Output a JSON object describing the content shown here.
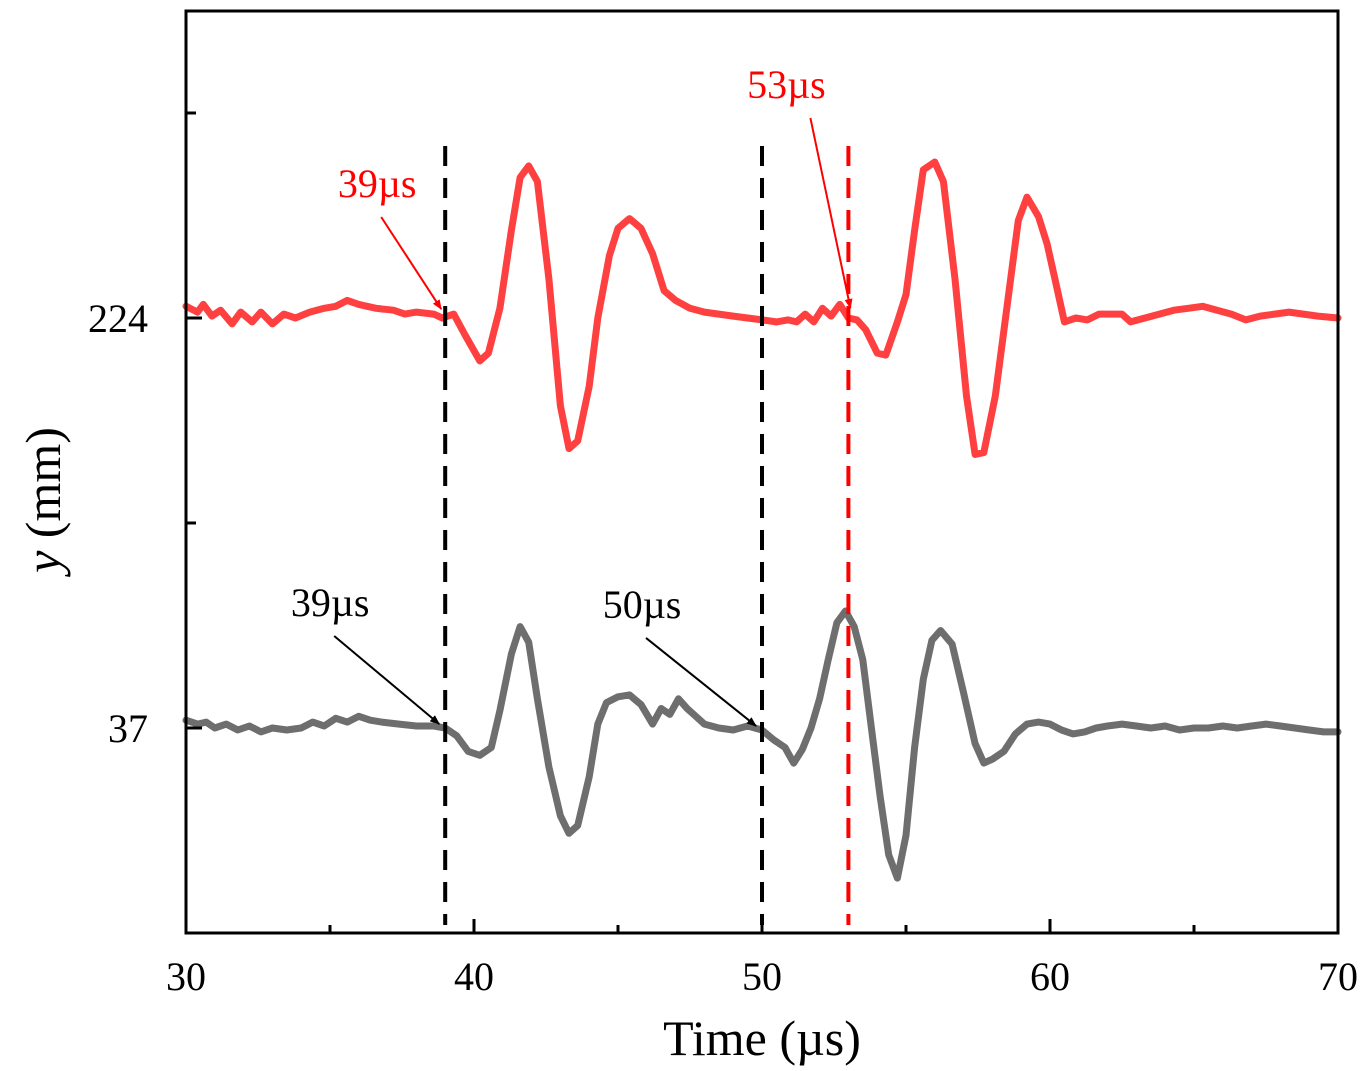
{
  "chart_data": {
    "type": "line",
    "title": "",
    "xlabel": "Time (µs)",
    "ylabel_italic": "y",
    "ylabel_unit": " (mm)",
    "xlim": [
      30,
      70
    ],
    "x_ticks": [
      30,
      40,
      50,
      60,
      70
    ],
    "x_minor_ticks": [
      35,
      45,
      55,
      65
    ],
    "y_tick_labels": [
      "224",
      "37"
    ],
    "colors": {
      "upper": "#ff4040",
      "lower": "#6e6e6e",
      "red_marker": "#ff0000",
      "black": "#000000"
    },
    "series": [
      {
        "name": "y = 224 mm",
        "offset_label": "224",
        "color": "#ff4040",
        "points": [
          [
            30.0,
            0.6
          ],
          [
            30.4,
            0.3
          ],
          [
            30.6,
            0.7
          ],
          [
            30.9,
            0.1
          ],
          [
            31.2,
            0.4
          ],
          [
            31.6,
            -0.3
          ],
          [
            31.9,
            0.3
          ],
          [
            32.3,
            -0.2
          ],
          [
            32.6,
            0.3
          ],
          [
            33.0,
            -0.3
          ],
          [
            33.4,
            0.2
          ],
          [
            33.8,
            0.0
          ],
          [
            34.3,
            0.3
          ],
          [
            34.8,
            0.5
          ],
          [
            35.2,
            0.6
          ],
          [
            35.6,
            0.9
          ],
          [
            36.0,
            0.7
          ],
          [
            36.6,
            0.5
          ],
          [
            37.2,
            0.4
          ],
          [
            37.6,
            0.2
          ],
          [
            38.0,
            0.3
          ],
          [
            38.6,
            0.2
          ],
          [
            38.9,
            0.0
          ],
          [
            39.3,
            0.2
          ],
          [
            39.7,
            -0.9
          ],
          [
            40.2,
            -2.2
          ],
          [
            40.5,
            -1.8
          ],
          [
            40.9,
            0.5
          ],
          [
            41.3,
            4.5
          ],
          [
            41.6,
            7.2
          ],
          [
            41.9,
            7.8
          ],
          [
            42.2,
            7.0
          ],
          [
            42.6,
            2.0
          ],
          [
            43.0,
            -4.5
          ],
          [
            43.3,
            -6.7
          ],
          [
            43.6,
            -6.3
          ],
          [
            44.0,
            -3.5
          ],
          [
            44.3,
            0.0
          ],
          [
            44.7,
            3.2
          ],
          [
            45.0,
            4.6
          ],
          [
            45.4,
            5.1
          ],
          [
            45.8,
            4.6
          ],
          [
            46.2,
            3.3
          ],
          [
            46.6,
            1.4
          ],
          [
            47.0,
            0.9
          ],
          [
            47.5,
            0.5
          ],
          [
            48.0,
            0.3
          ],
          [
            48.5,
            0.2
          ],
          [
            49.0,
            0.1
          ],
          [
            49.5,
            0.0
          ],
          [
            50.0,
            -0.1
          ],
          [
            50.5,
            -0.2
          ],
          [
            50.9,
            -0.1
          ],
          [
            51.2,
            -0.2
          ],
          [
            51.5,
            0.2
          ],
          [
            51.8,
            -0.2
          ],
          [
            52.1,
            0.5
          ],
          [
            52.4,
            0.1
          ],
          [
            52.7,
            0.7
          ],
          [
            53.0,
            0.0
          ],
          [
            53.3,
            -0.1
          ],
          [
            53.6,
            -0.6
          ],
          [
            54.0,
            -1.8
          ],
          [
            54.3,
            -1.9
          ],
          [
            54.7,
            -0.2
          ],
          [
            55.0,
            1.2
          ],
          [
            55.3,
            4.5
          ],
          [
            55.6,
            7.6
          ],
          [
            56.0,
            8.0
          ],
          [
            56.3,
            7.0
          ],
          [
            56.7,
            2.0
          ],
          [
            57.1,
            -4.0
          ],
          [
            57.4,
            -7.0
          ],
          [
            57.7,
            -6.9
          ],
          [
            58.1,
            -4.0
          ],
          [
            58.5,
            0.5
          ],
          [
            58.9,
            5.0
          ],
          [
            59.2,
            6.2
          ],
          [
            59.6,
            5.2
          ],
          [
            59.9,
            3.8
          ],
          [
            60.2,
            1.8
          ],
          [
            60.5,
            -0.2
          ],
          [
            60.9,
            0.0
          ],
          [
            61.3,
            -0.1
          ],
          [
            61.7,
            0.2
          ],
          [
            62.1,
            0.2
          ],
          [
            62.5,
            0.2
          ],
          [
            62.8,
            -0.2
          ],
          [
            63.3,
            0.0
          ],
          [
            63.8,
            0.2
          ],
          [
            64.3,
            0.4
          ],
          [
            64.8,
            0.5
          ],
          [
            65.3,
            0.6
          ],
          [
            65.8,
            0.4
          ],
          [
            66.3,
            0.2
          ],
          [
            66.8,
            -0.1
          ],
          [
            67.3,
            0.1
          ],
          [
            67.8,
            0.2
          ],
          [
            68.3,
            0.3
          ],
          [
            68.8,
            0.2
          ],
          [
            69.3,
            0.1
          ],
          [
            70.0,
            0.0
          ]
        ]
      },
      {
        "name": "y = 37 mm",
        "offset_label": "37",
        "color": "#6e6e6e",
        "points": [
          [
            30.0,
            0.4
          ],
          [
            30.4,
            0.2
          ],
          [
            30.7,
            0.3
          ],
          [
            31.0,
            0.0
          ],
          [
            31.4,
            0.2
          ],
          [
            31.8,
            -0.1
          ],
          [
            32.2,
            0.1
          ],
          [
            32.6,
            -0.2
          ],
          [
            33.0,
            0.0
          ],
          [
            33.5,
            -0.1
          ],
          [
            34.0,
            0.0
          ],
          [
            34.4,
            0.3
          ],
          [
            34.8,
            0.1
          ],
          [
            35.2,
            0.5
          ],
          [
            35.6,
            0.3
          ],
          [
            36.0,
            0.6
          ],
          [
            36.4,
            0.4
          ],
          [
            36.8,
            0.3
          ],
          [
            37.4,
            0.2
          ],
          [
            38.0,
            0.1
          ],
          [
            38.6,
            0.1
          ],
          [
            39.0,
            0.0
          ],
          [
            39.4,
            -0.4
          ],
          [
            39.8,
            -1.2
          ],
          [
            40.2,
            -1.4
          ],
          [
            40.6,
            -1.0
          ],
          [
            40.9,
            0.9
          ],
          [
            41.3,
            3.8
          ],
          [
            41.6,
            5.2
          ],
          [
            41.9,
            4.4
          ],
          [
            42.2,
            1.5
          ],
          [
            42.6,
            -2.0
          ],
          [
            43.0,
            -4.5
          ],
          [
            43.3,
            -5.4
          ],
          [
            43.6,
            -5.0
          ],
          [
            44.0,
            -2.5
          ],
          [
            44.3,
            0.2
          ],
          [
            44.6,
            1.3
          ],
          [
            45.0,
            1.6
          ],
          [
            45.4,
            1.7
          ],
          [
            45.8,
            1.2
          ],
          [
            46.2,
            0.2
          ],
          [
            46.5,
            1.0
          ],
          [
            46.8,
            0.7
          ],
          [
            47.1,
            1.5
          ],
          [
            47.4,
            1.0
          ],
          [
            47.7,
            0.6
          ],
          [
            48.0,
            0.2
          ],
          [
            48.5,
            0.0
          ],
          [
            49.0,
            -0.1
          ],
          [
            49.5,
            0.1
          ],
          [
            50.0,
            -0.1
          ],
          [
            50.4,
            -0.6
          ],
          [
            50.8,
            -1.0
          ],
          [
            51.1,
            -1.8
          ],
          [
            51.4,
            -1.1
          ],
          [
            51.7,
            0.0
          ],
          [
            52.0,
            1.5
          ],
          [
            52.3,
            3.5
          ],
          [
            52.6,
            5.4
          ],
          [
            52.9,
            6.0
          ],
          [
            53.2,
            5.2
          ],
          [
            53.5,
            3.5
          ],
          [
            53.8,
            0.0
          ],
          [
            54.1,
            -3.5
          ],
          [
            54.4,
            -6.5
          ],
          [
            54.7,
            -7.7
          ],
          [
            55.0,
            -5.5
          ],
          [
            55.3,
            -1.0
          ],
          [
            55.6,
            2.5
          ],
          [
            55.9,
            4.5
          ],
          [
            56.2,
            5.0
          ],
          [
            56.6,
            4.3
          ],
          [
            57.0,
            1.8
          ],
          [
            57.4,
            -0.8
          ],
          [
            57.7,
            -1.8
          ],
          [
            58.0,
            -1.6
          ],
          [
            58.4,
            -1.2
          ],
          [
            58.8,
            -0.3
          ],
          [
            59.2,
            0.2
          ],
          [
            59.6,
            0.3
          ],
          [
            60.0,
            0.2
          ],
          [
            60.4,
            -0.1
          ],
          [
            60.8,
            -0.3
          ],
          [
            61.2,
            -0.2
          ],
          [
            61.6,
            0.0
          ],
          [
            62.0,
            0.1
          ],
          [
            62.5,
            0.2
          ],
          [
            63.0,
            0.1
          ],
          [
            63.5,
            0.0
          ],
          [
            64.0,
            0.1
          ],
          [
            64.5,
            -0.1
          ],
          [
            65.0,
            0.0
          ],
          [
            65.5,
            0.0
          ],
          [
            66.0,
            0.1
          ],
          [
            66.5,
            0.0
          ],
          [
            67.0,
            0.1
          ],
          [
            67.5,
            0.2
          ],
          [
            68.0,
            0.1
          ],
          [
            68.5,
            0.0
          ],
          [
            69.0,
            -0.1
          ],
          [
            69.5,
            -0.2
          ],
          [
            70.0,
            -0.2
          ]
        ]
      }
    ],
    "vertical_lines": [
      {
        "x": 39,
        "color": "#000000"
      },
      {
        "x": 50,
        "color": "#000000"
      },
      {
        "x": 53,
        "color": "#ff0000"
      }
    ],
    "annotations": [
      {
        "label": "39µs",
        "color": "#ff0000",
        "target_x": 39,
        "target_series": 0
      },
      {
        "label": "53µs",
        "color": "#ff0000",
        "target_x": 53,
        "target_series": 0
      },
      {
        "label": "39µs",
        "color": "#000000",
        "target_x": 39,
        "target_series": 1
      },
      {
        "label": "50µs",
        "color": "#000000",
        "target_x": 50,
        "target_series": 1
      }
    ]
  }
}
